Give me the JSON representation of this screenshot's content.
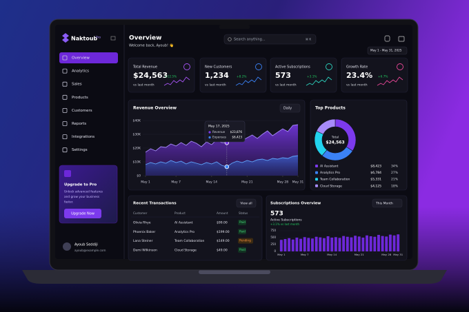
{
  "sidebar": {
    "brand": "Naktoub",
    "badge": "Pro",
    "menu": [
      "Overview",
      "Analytics",
      "Sales",
      "Products",
      "Customers",
      "Reports",
      "Integrations",
      "Settings"
    ],
    "upgrade": {
      "title": "Upgrade to Pro",
      "text": [
        "Unlock advanced features",
        "and grow your business",
        "faster."
      ],
      "button": "Upgrade Now"
    },
    "user": {
      "name": "Ayoub Seddiji",
      "email": "ayoub@example.com"
    }
  },
  "header": {
    "title": "Overview",
    "subtitle": "Welcome back, Ayoub! 👋",
    "search": "Search anything...",
    "shortcut": "⌘ K",
    "date_range": "May 1 - May 31, 2025"
  },
  "kpis": [
    {
      "label": "Total Revenue",
      "value": "$24,563",
      "change": "+12.5%",
      "note": "vs last month",
      "color": "#a855f7"
    },
    {
      "label": "New Customers",
      "value": "1,234",
      "change": "+8.2%",
      "note": "vs last month",
      "color": "#3b82f6"
    },
    {
      "label": "Active Subscriptions",
      "value": "573",
      "change": "+3.1%",
      "note": "vs last month",
      "color": "#2dd4bf"
    },
    {
      "label": "Growth Rate",
      "value": "23.4%",
      "change": "+6.7%",
      "note": "vs last month",
      "color": "#ec4899"
    }
  ],
  "revenue_chart": {
    "type": "area",
    "title": "Revenue Overview",
    "period": "Daily",
    "x": [
      1,
      2,
      3,
      4,
      5,
      6,
      7,
      8,
      9,
      10,
      11,
      12,
      13,
      14,
      15,
      16,
      17,
      18,
      19,
      20,
      21,
      22,
      23,
      24,
      25,
      26,
      27,
      28,
      29,
      30,
      31
    ],
    "series": [
      {
        "name": "Revenue",
        "color": "#7c3aed",
        "values": [
          17000,
          19500,
          18000,
          21000,
          20500,
          23000,
          21500,
          24000,
          22000,
          25000,
          23500,
          21000,
          24500,
          22500,
          26000,
          24000,
          23876,
          26500,
          28000,
          25500,
          27500,
          29500,
          27000,
          30000,
          32500,
          29000,
          31500,
          34000,
          32000,
          36500,
          37000
        ]
      },
      {
        "name": "Expenses",
        "color": "#3b82f6",
        "values": [
          8000,
          9500,
          8500,
          10000,
          9000,
          11000,
          9500,
          10500,
          8500,
          10000,
          9000,
          8000,
          9500,
          8500,
          10000,
          7500,
          6423,
          9000,
          10500,
          9500,
          11000,
          10000,
          11500,
          12000,
          11000,
          12500,
          12000,
          13000,
          12500,
          14000,
          14500
        ]
      }
    ],
    "xlim": [
      1,
      31
    ],
    "xticks": [
      {
        "value": 1,
        "label": "May 1"
      },
      {
        "value": 7,
        "label": "May 7"
      },
      {
        "value": 14,
        "label": "May 14"
      },
      {
        "value": 21,
        "label": "May 21"
      },
      {
        "value": 28,
        "label": "May 28"
      },
      {
        "value": 31,
        "label": "May 31"
      }
    ],
    "ylim": [
      0,
      40000
    ],
    "yticks": [
      {
        "value": 0,
        "label": "$0"
      },
      {
        "value": 10000,
        "label": "$10K"
      },
      {
        "value": 20000,
        "label": "$20K"
      },
      {
        "value": 30000,
        "label": "$30K"
      },
      {
        "value": 40000,
        "label": "$40K"
      }
    ],
    "grid": true,
    "tooltip": {
      "date": "May 17, 2025",
      "x": 17,
      "values": [
        "$23,876",
        "$6,423"
      ]
    }
  },
  "top_products": {
    "type": "pie",
    "title": "Top Products",
    "categories": [
      "AI Assistant",
      "Analytics Pro",
      "Team Collaboration",
      "Cloud Storage"
    ],
    "values": [
      34,
      27,
      21,
      18
    ],
    "value_labels": [
      "34%",
      "27%",
      "21%",
      "18%"
    ],
    "amounts": [
      "$8,423",
      "$6,784",
      "$5,331",
      "$4,125"
    ],
    "colors": [
      "#7c3aed",
      "#3b82f6",
      "#22d3ee",
      "#a78bfa"
    ],
    "center_label": "Total",
    "center_value": "$24,563"
  },
  "transactions": {
    "title": "Recent Transactions",
    "action": "View all",
    "headers": [
      "Customer",
      "Product",
      "Amount",
      "Status"
    ],
    "rows": [
      [
        "Olivia Rhye",
        "AI Assistant",
        "$99.00",
        "Paid"
      ],
      [
        "Phoenix Baker",
        "Analytics Pro",
        "$199.00",
        "Paid"
      ],
      [
        "Lana Steiner",
        "Team Collaboration",
        "$149.00",
        "Pending"
      ],
      [
        "Demi Wilkinson",
        "Cloud Storage",
        "$49.00",
        "Paid"
      ]
    ]
  },
  "subscriptions_chart": {
    "type": "bar",
    "title": "Subscriptions Overview",
    "period": "This Month",
    "total": "573",
    "subtitle": "Active Subscriptions",
    "change": "+3.1% vs last month",
    "color": "#6d28d9",
    "x": [
      1,
      2,
      3,
      4,
      5,
      6,
      7,
      8,
      9,
      10,
      11,
      12,
      13,
      14,
      15,
      16,
      17,
      18,
      19,
      20,
      21,
      22,
      23,
      24,
      25,
      26,
      27,
      28,
      29,
      30,
      31
    ],
    "values": [
      420,
      450,
      480,
      430,
      500,
      460,
      520,
      490,
      470,
      530,
      510,
      480,
      550,
      500,
      520,
      490,
      560,
      530,
      510,
      570,
      540,
      500,
      580,
      550,
      530,
      600,
      560,
      540,
      610,
      580,
      620
    ],
    "xlim": [
      0.5,
      31.5
    ],
    "xticks": [
      {
        "value": 1,
        "label": "May 1"
      },
      {
        "value": 7,
        "label": "May 7"
      },
      {
        "value": 14,
        "label": "May 14"
      },
      {
        "value": 21,
        "label": "May 21"
      },
      {
        "value": 28,
        "label": "May 28"
      },
      {
        "value": 31,
        "label": "May 31"
      }
    ],
    "ylim": [
      0,
      750
    ],
    "yticks": [
      0,
      250,
      500,
      750
    ]
  }
}
